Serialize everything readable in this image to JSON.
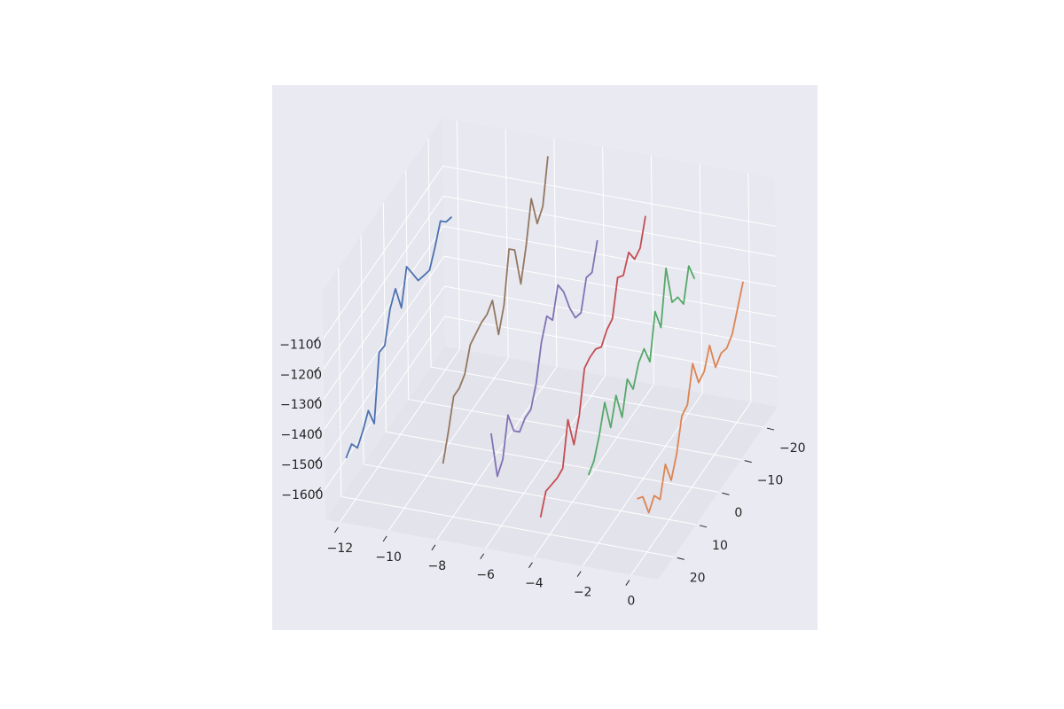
{
  "chart_data": {
    "type": "line3d",
    "grid": true,
    "xlim": [
      -12.6,
      1.1
    ],
    "ylim": [
      -26.3,
      27
    ],
    "zlim": [
      -1700,
      -940
    ],
    "xticks": [
      {
        "value": -12,
        "label": "−12"
      },
      {
        "value": -10,
        "label": "−10"
      },
      {
        "value": -8,
        "label": "−8"
      },
      {
        "value": -6,
        "label": "−6"
      },
      {
        "value": -4,
        "label": "−4"
      },
      {
        "value": -2,
        "label": "−2"
      },
      0
    ],
    "yticks": [
      {
        "value": -20,
        "label": "−20"
      },
      {
        "value": -10,
        "label": "−10"
      },
      0,
      10,
      20
    ],
    "zticks": [
      {
        "value": -1600,
        "label": "−1600"
      },
      {
        "value": -1500,
        "label": "−1500"
      },
      {
        "value": -1400,
        "label": "−1400"
      },
      {
        "value": -1300,
        "label": "−1300"
      },
      {
        "value": -1200,
        "label": "−1200"
      },
      {
        "value": -1100,
        "label": "−1100"
      }
    ],
    "y": [
      24,
      21.5,
      19,
      16.5,
      14,
      11.5,
      9,
      6.5,
      4,
      1.5,
      -1,
      -3.5,
      -6,
      -8.5,
      -11,
      -13.5,
      -16,
      -18.5,
      -21,
      -23.5
    ],
    "series": [
      {
        "color": "#4c72b0",
        "x": -12,
        "z": [
          -1520,
          -1500,
          -1540,
          -1510,
          -1470,
          -1540,
          -1330,
          -1335,
          -1240,
          -1200,
          -1290,
          -1180,
          -1230,
          -1280,
          -1290,
          -1300,
          -1250,
          -1190,
          -1220,
          -1230
        ]
      },
      {
        "color": "#dd8452",
        "x": 0,
        "z": [
          -1480,
          -1500,
          -1580,
          -1550,
          -1590,
          -1500,
          -1580,
          -1520,
          -1420,
          -1410,
          -1300,
          -1390,
          -1380,
          -1320,
          -1420,
          -1400,
          -1410,
          -1390,
          -1330,
          -1270
        ]
      },
      {
        "color": "#55a868",
        "x": -2,
        "z": [
          -1430,
          -1410,
          -1350,
          -1270,
          -1380,
          -1300,
          -1400,
          -1300,
          -1360,
          -1300,
          -1280,
          -1350,
          -1210,
          -1290,
          -1120,
          -1260,
          -1270,
          -1320,
          -1220,
          -1290
        ]
      },
      {
        "color": "#c44e52",
        "x": -4,
        "z": [
          -1600,
          -1540,
          -1545,
          -1550,
          -1545,
          -1410,
          -1520,
          -1450,
          -1320,
          -1310,
          -1310,
          -1330,
          -1300,
          -1290,
          -1180,
          -1200,
          -1150,
          -1200,
          -1190,
          -1110
        ]
      },
      {
        "color": "#8172b3",
        "x": -6,
        "z": [
          -1350,
          -1520,
          -1490,
          -1370,
          -1450,
          -1480,
          -1460,
          -1460,
          -1400,
          -1290,
          -1230,
          -1270,
          -1180,
          -1230,
          -1310,
          -1370,
          -1380,
          -1290,
          -1300,
          -1220
        ]
      },
      {
        "color": "#937860",
        "x": -8,
        "z": [
          -1480,
          -1400,
          -1310,
          -1310,
          -1290,
          -1220,
          -1210,
          -1200,
          -1200,
          -1180,
          -1320,
          -1250,
          -1090,
          -1120,
          -1260,
          -1160,
          -1030,
          -1140,
          -1110,
          -970
        ]
      }
    ]
  }
}
